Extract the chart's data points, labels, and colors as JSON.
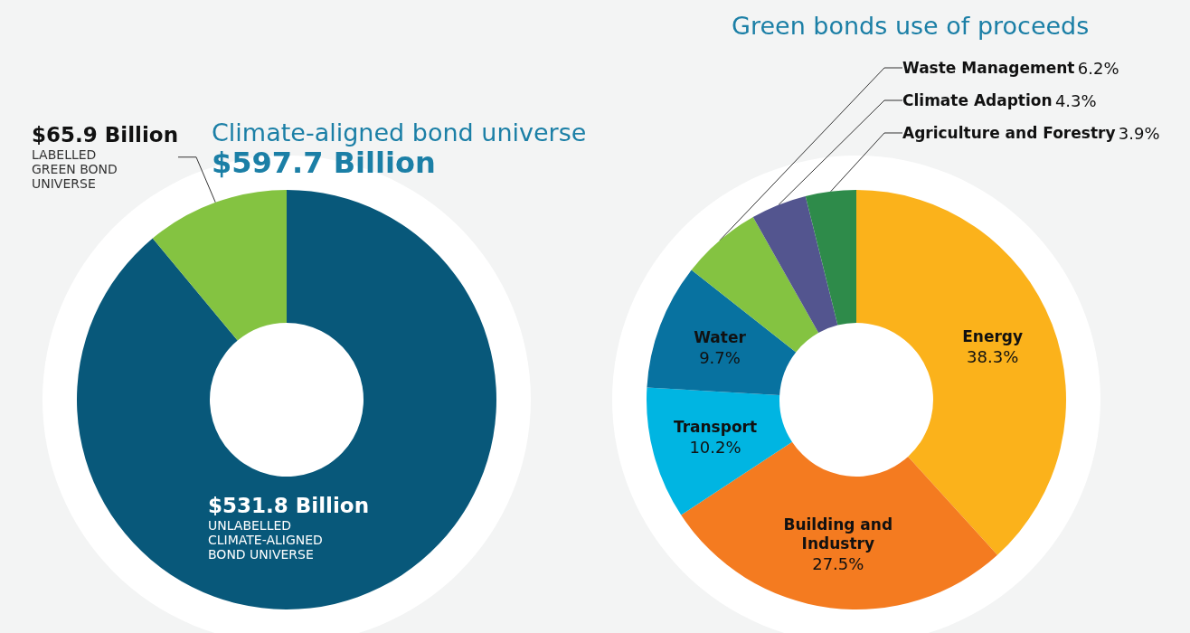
{
  "chart_data": [
    {
      "type": "donut",
      "title": "Climate-aligned bond universe",
      "subtitle": "$597.7 Billion",
      "categories": [
        "UNLABELLED\nCLIMATE-ALIGNED\nBOND UNIVERSE",
        "LABELLED\nGREEN BOND\nUNIVERSE"
      ],
      "values": [
        531.8,
        65.9
      ],
      "value_labels": [
        "$531.8 Billion",
        "$65.9 Billion"
      ],
      "colors": [
        "#08587a",
        "#84c341"
      ]
    },
    {
      "type": "donut",
      "title": "Green bonds use of proceeds",
      "categories": [
        "Energy",
        "Building and Industry",
        "Transport",
        "Water",
        "Waste Management",
        "Climate Adaption",
        "Agriculture and Forestry"
      ],
      "values": [
        38.3,
        27.5,
        10.2,
        9.7,
        6.2,
        4.3,
        3.9
      ],
      "value_labels": [
        "38.3%",
        "27.5%",
        "10.2%",
        "9.7%",
        "6.2%",
        "4.3%",
        "3.9%"
      ],
      "colors": [
        "#fbb21b",
        "#f47b20",
        "#00b5e2",
        "#0872a0",
        "#84c341",
        "#53558f",
        "#2e8b4a"
      ]
    }
  ]
}
